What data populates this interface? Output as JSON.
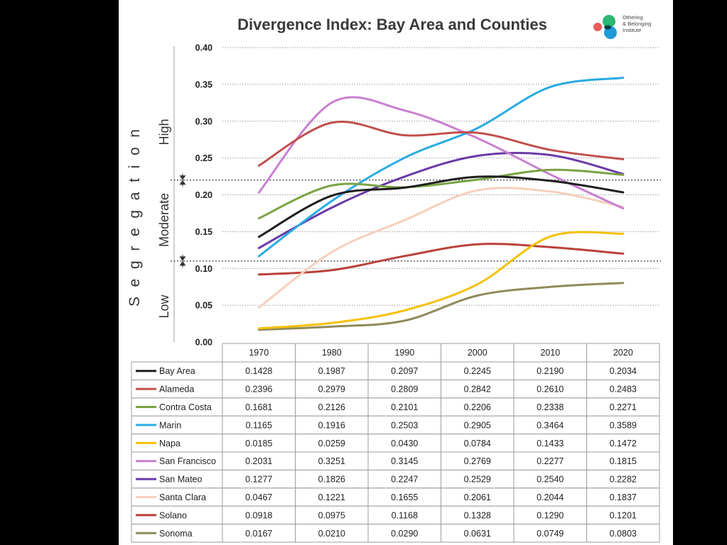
{
  "chart_data": {
    "type": "line",
    "title": "Divergence Index: Bay Area and Counties",
    "ylabel": "Segregation",
    "categories": [
      "1970",
      "1980",
      "1990",
      "2000",
      "2010",
      "2020"
    ],
    "ylim": [
      0,
      0.4
    ],
    "yticks": [
      "0.00",
      "0.05",
      "0.10",
      "0.15",
      "0.20",
      "0.25",
      "0.30",
      "0.35",
      "0.40"
    ],
    "grid": true,
    "legend": "bottom",
    "bands": {
      "high": "High",
      "moderate": "Moderate",
      "low": "Low"
    },
    "band_thresholds": [
      0.11,
      0.22
    ],
    "series": [
      {
        "name": "Bay Area",
        "color": "#1e1e1e",
        "values": [
          0.1428,
          0.1987,
          0.2097,
          0.2245,
          0.219,
          0.2034
        ]
      },
      {
        "name": "Alameda",
        "color": "#c0504d",
        "values": [
          0.2396,
          0.2979,
          0.2809,
          0.2842,
          0.261,
          0.2483
        ]
      },
      {
        "name": "Contra Costa",
        "color": "#7aa344",
        "values": [
          0.1681,
          0.2126,
          0.2101,
          0.2206,
          0.2338,
          0.2271
        ]
      },
      {
        "name": "Marin",
        "color": "#29abe2",
        "values": [
          0.1165,
          0.1916,
          0.2503,
          0.2905,
          0.3464,
          0.3589
        ]
      },
      {
        "name": "Napa",
        "color": "#f5c000",
        "values": [
          0.0185,
          0.0259,
          0.043,
          0.0784,
          0.1433,
          0.1472
        ]
      },
      {
        "name": "San Francisco",
        "color": "#c97fd1",
        "values": [
          0.2031,
          0.3251,
          0.3145,
          0.2769,
          0.2277,
          0.1815
        ]
      },
      {
        "name": "San Mateo",
        "color": "#6a3aa8",
        "values": [
          0.1277,
          0.1826,
          0.2247,
          0.2529,
          0.254,
          0.2282
        ]
      },
      {
        "name": "Santa Clara",
        "color": "#f6cfbb",
        "values": [
          0.0467,
          0.1221,
          0.1655,
          0.2061,
          0.2044,
          0.1837
        ]
      },
      {
        "name": "Solano",
        "color": "#b9413a",
        "values": [
          0.0918,
          0.0975,
          0.1168,
          0.1328,
          0.129,
          0.1201
        ]
      },
      {
        "name": "Sonoma",
        "color": "#8f8a5a",
        "values": [
          0.0167,
          0.021,
          0.029,
          0.0631,
          0.0749,
          0.0803
        ]
      }
    ]
  },
  "logo": {
    "lines": [
      "Othering",
      "& Belonging",
      "Institute"
    ],
    "colors": [
      "#ef5a5a",
      "#2bb673",
      "#1f9bd7",
      "#123d4a"
    ]
  }
}
